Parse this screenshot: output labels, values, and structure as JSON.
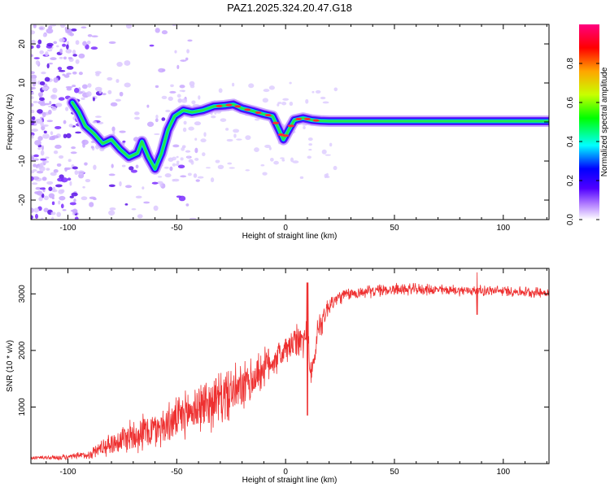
{
  "title": "PAZ1.2025.324.20.47.G18",
  "chart_data": [
    {
      "type": "heatmap",
      "name": "spectrogram",
      "xlabel": "Height of straight line (km)",
      "ylabel": "Frequency (Hz)",
      "xlim": [
        -117,
        121
      ],
      "ylim": [
        -25,
        25
      ],
      "xticks": [
        -100,
        -50,
        0,
        50,
        100
      ],
      "yticks": [
        20,
        10,
        0,
        -10,
        -20
      ],
      "xtick_labels": [
        "-100",
        "-50",
        "0",
        "50",
        "100"
      ],
      "ytick_labels": [
        "20",
        "10",
        "0",
        "-10",
        "-20"
      ],
      "colorbar": {
        "label": "Normalized spectral amplitude",
        "range": [
          0,
          1
        ],
        "ticks": [
          0,
          0.2,
          0.4,
          0.6,
          0.8
        ],
        "tick_labels": [
          "0.0",
          "0.2",
          "0.4",
          "0.6",
          "0.8"
        ],
        "colors": [
          "#ffffff",
          "#b07cff",
          "#5000ff",
          "#0000ff",
          "#00ffff",
          "#00ff00",
          "#c8ff00",
          "#ffa500",
          "#ff0000",
          "#ff0080"
        ]
      },
      "ridge": {
        "x": [
          -98,
          -95,
          -92,
          -88,
          -84,
          -80,
          -76,
          -72,
          -68,
          -66,
          -63,
          -60,
          -57,
          -54,
          -51,
          -47,
          -43,
          -38,
          -33,
          -28,
          -24,
          -20,
          -15,
          -10,
          -6,
          -3,
          -1,
          1,
          4,
          8,
          12,
          16,
          20,
          121
        ],
        "y": [
          5,
          2.5,
          -1,
          -3,
          -5.5,
          -4.5,
          -7,
          -9,
          -8,
          -5,
          -9,
          -12,
          -8,
          -2,
          1.5,
          3,
          2.5,
          3,
          4,
          4.2,
          4.5,
          3.5,
          2.8,
          2,
          1.5,
          -2,
          -4.5,
          -2.5,
          0.5,
          1,
          0.5,
          0.3,
          0.2,
          0.2
        ]
      },
      "scatter_region": {
        "x_range": [
          -117,
          -60
        ],
        "y_range": [
          -25,
          25
        ],
        "density": "high"
      },
      "band_center_hz": 0.2
    },
    {
      "type": "line",
      "name": "snr",
      "xlabel": "Height of straight line (km)",
      "ylabel": "SNR (10 * v/v)",
      "xlim": [
        -117,
        121
      ],
      "ylim": [
        0,
        3450
      ],
      "xticks": [
        -100,
        -50,
        0,
        50,
        100
      ],
      "yticks": [
        1000,
        2000,
        3000
      ],
      "xtick_labels": [
        "-100",
        "-50",
        "0",
        "50",
        "100"
      ],
      "ytick_labels": [
        "1000",
        "2000",
        "3000"
      ],
      "color": "#ee3030",
      "envelope": {
        "x": [
          -117,
          -100,
          -90,
          -85,
          -80,
          -75,
          -70,
          -60,
          -50,
          -45,
          -40,
          -35,
          -30,
          -25,
          -20,
          -15,
          -10,
          -5,
          0,
          5,
          10,
          12,
          15,
          20,
          25,
          30,
          40,
          50,
          60,
          80,
          100,
          121
        ],
        "mean": [
          100,
          110,
          160,
          280,
          350,
          430,
          520,
          600,
          780,
          900,
          1000,
          1080,
          1150,
          1250,
          1320,
          1480,
          1700,
          1850,
          2000,
          2150,
          2200,
          1500,
          2400,
          2800,
          2950,
          3000,
          3050,
          3080,
          3080,
          3060,
          3050,
          3020
        ],
        "amp": [
          40,
          60,
          100,
          180,
          240,
          320,
          400,
          420,
          440,
          500,
          560,
          560,
          580,
          560,
          520,
          500,
          420,
          360,
          320,
          360,
          450,
          350,
          340,
          220,
          160,
          130,
          130,
          130,
          120,
          110,
          110,
          110
        ]
      },
      "notable_points": [
        {
          "x": 10,
          "y": 3200
        },
        {
          "x": 10,
          "y": 850
        },
        {
          "x": 88,
          "y": 3380
        },
        {
          "x": 88,
          "y": 2630
        }
      ]
    }
  ]
}
